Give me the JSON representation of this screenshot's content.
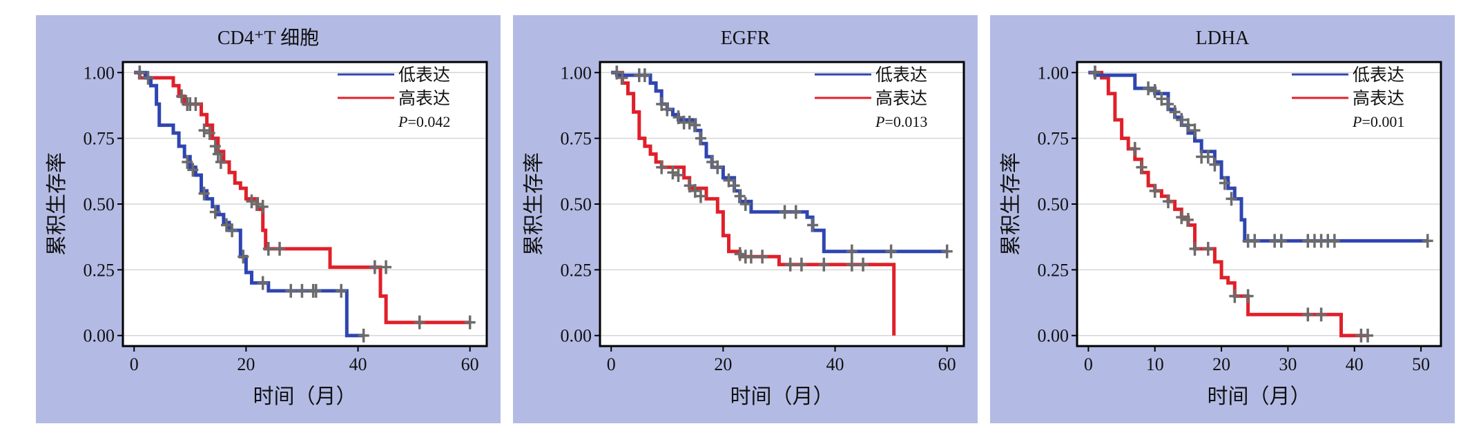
{
  "figure": {
    "y_axis_label": "累积生存率",
    "x_axis_label": "时间（月）"
  },
  "legend": {
    "low_label": "低表达",
    "high_label": "高表达",
    "low_color": "#2f45b0",
    "high_color": "#e0202a"
  },
  "chart_data": [
    {
      "type": "line",
      "title": "CD4⁺T 细胞",
      "xlabel": "时间（月）",
      "ylabel": "累积生存率",
      "xlim": [
        -2,
        63
      ],
      "ylim": [
        -0.04,
        1.04
      ],
      "xticks": [
        "0",
        "20",
        "40",
        "60"
      ],
      "yticks": [
        "0.00",
        "0.25",
        "0.50",
        "0.75",
        "1.00"
      ],
      "p_label": "P",
      "p_value": "=0.042",
      "legend_position": "top-right",
      "series": [
        {
          "name": "低表达",
          "steps": [
            [
              0,
              1.0
            ],
            [
              2,
              0.98
            ],
            [
              3,
              0.95
            ],
            [
              4,
              0.88
            ],
            [
              4.5,
              0.8
            ],
            [
              7,
              0.77
            ],
            [
              8,
              0.72
            ],
            [
              9,
              0.68
            ],
            [
              10,
              0.64
            ],
            [
              11,
              0.61
            ],
            [
              12,
              0.55
            ],
            [
              13,
              0.52
            ],
            [
              14,
              0.49
            ],
            [
              15,
              0.46
            ],
            [
              16,
              0.43
            ],
            [
              17,
              0.4
            ],
            [
              19,
              0.3
            ],
            [
              20,
              0.24
            ],
            [
              21,
              0.2
            ],
            [
              24,
              0.17
            ],
            [
              32,
              0.17
            ],
            [
              38,
              0.0
            ],
            [
              41,
              0.0
            ]
          ],
          "censors": [
            [
              1,
              1.0
            ],
            [
              2.5,
              0.98
            ],
            [
              9.5,
              0.66
            ],
            [
              10.5,
              0.63
            ],
            [
              12.5,
              0.54
            ],
            [
              14.5,
              0.47
            ],
            [
              16.5,
              0.42
            ],
            [
              17.5,
              0.4
            ],
            [
              19.5,
              0.3
            ],
            [
              23,
              0.2
            ],
            [
              28,
              0.17
            ],
            [
              30,
              0.17
            ],
            [
              32,
              0.17
            ],
            [
              32.5,
              0.17
            ],
            [
              37,
              0.17
            ],
            [
              41,
              0.0
            ]
          ]
        },
        {
          "name": "高表达",
          "steps": [
            [
              0,
              1.0
            ],
            [
              1,
              0.98
            ],
            [
              7,
              0.95
            ],
            [
              8,
              0.91
            ],
            [
              9,
              0.88
            ],
            [
              12,
              0.84
            ],
            [
              13,
              0.8
            ],
            [
              14,
              0.75
            ],
            [
              15,
              0.7
            ],
            [
              16,
              0.66
            ],
            [
              17,
              0.62
            ],
            [
              18,
              0.58
            ],
            [
              19,
              0.56
            ],
            [
              20,
              0.52
            ],
            [
              22,
              0.48
            ],
            [
              23,
              0.4
            ],
            [
              23.5,
              0.33
            ],
            [
              35,
              0.26
            ],
            [
              44,
              0.15
            ],
            [
              45,
              0.05
            ],
            [
              50,
              0.05
            ],
            [
              60,
              0.05
            ]
          ],
          "censors": [
            [
              1,
              1.0
            ],
            [
              8.5,
              0.91
            ],
            [
              9.5,
              0.88
            ],
            [
              10,
              0.88
            ],
            [
              11,
              0.88
            ],
            [
              12.5,
              0.78
            ],
            [
              13.5,
              0.77
            ],
            [
              14.5,
              0.72
            ],
            [
              15,
              0.69
            ],
            [
              15.5,
              0.66
            ],
            [
              21,
              0.51
            ],
            [
              22,
              0.5
            ],
            [
              23,
              0.49
            ],
            [
              24,
              0.33
            ],
            [
              26,
              0.33
            ],
            [
              43,
              0.26
            ],
            [
              45,
              0.26
            ],
            [
              51,
              0.05
            ],
            [
              60,
              0.05
            ]
          ]
        }
      ]
    },
    {
      "type": "line",
      "title": "EGFR",
      "xlabel": "时间（月）",
      "ylabel": "累积生存率",
      "xlim": [
        -2,
        63
      ],
      "ylim": [
        -0.04,
        1.04
      ],
      "xticks": [
        "0",
        "20",
        "40",
        "60"
      ],
      "yticks": [
        "0.00",
        "0.25",
        "0.50",
        "0.75",
        "1.00"
      ],
      "p_label": "P",
      "p_value": "=0.013",
      "legend_position": "top-right",
      "series": [
        {
          "name": "低表达",
          "steps": [
            [
              0,
              1.0
            ],
            [
              1,
              0.99
            ],
            [
              7,
              0.96
            ],
            [
              8,
              0.93
            ],
            [
              9,
              0.88
            ],
            [
              10,
              0.86
            ],
            [
              11,
              0.84
            ],
            [
              12,
              0.82
            ],
            [
              15,
              0.78
            ],
            [
              16,
              0.73
            ],
            [
              17,
              0.68
            ],
            [
              18,
              0.64
            ],
            [
              20,
              0.6
            ],
            [
              22,
              0.55
            ],
            [
              23,
              0.51
            ],
            [
              25,
              0.47
            ],
            [
              35,
              0.45
            ],
            [
              36,
              0.4
            ],
            [
              38,
              0.32
            ],
            [
              60,
              0.32
            ]
          ],
          "censors": [
            [
              1,
              1.0
            ],
            [
              5,
              0.99
            ],
            [
              6,
              0.99
            ],
            [
              9,
              0.88
            ],
            [
              10,
              0.86
            ],
            [
              12,
              0.83
            ],
            [
              13,
              0.81
            ],
            [
              14,
              0.81
            ],
            [
              15,
              0.8
            ],
            [
              16,
              0.75
            ],
            [
              18,
              0.66
            ],
            [
              19,
              0.64
            ],
            [
              21,
              0.59
            ],
            [
              22,
              0.57
            ],
            [
              23,
              0.53
            ],
            [
              24,
              0.5
            ],
            [
              31,
              0.47
            ],
            [
              33,
              0.47
            ],
            [
              36,
              0.42
            ],
            [
              43,
              0.32
            ],
            [
              50,
              0.32
            ],
            [
              60,
              0.32
            ]
          ]
        },
        {
          "name": "高表达",
          "steps": [
            [
              0,
              1.0
            ],
            [
              2,
              0.96
            ],
            [
              3,
              0.92
            ],
            [
              4,
              0.85
            ],
            [
              5,
              0.75
            ],
            [
              6,
              0.72
            ],
            [
              7,
              0.69
            ],
            [
              8,
              0.66
            ],
            [
              9,
              0.64
            ],
            [
              13,
              0.6
            ],
            [
              14,
              0.56
            ],
            [
              17,
              0.52
            ],
            [
              19,
              0.47
            ],
            [
              20,
              0.38
            ],
            [
              21,
              0.32
            ],
            [
              23,
              0.3
            ],
            [
              26,
              0.3
            ],
            [
              30,
              0.27
            ],
            [
              50.5,
              0.27
            ],
            [
              50.5,
              0.0
            ]
          ],
          "censors": [
            [
              1,
              1.0
            ],
            [
              2,
              0.98
            ],
            [
              9,
              0.64
            ],
            [
              11,
              0.62
            ],
            [
              12,
              0.61
            ],
            [
              14,
              0.57
            ],
            [
              15,
              0.55
            ],
            [
              16,
              0.53
            ],
            [
              23,
              0.31
            ],
            [
              24,
              0.3
            ],
            [
              25,
              0.3
            ],
            [
              27,
              0.3
            ],
            [
              32,
              0.27
            ],
            [
              34,
              0.27
            ],
            [
              38,
              0.27
            ],
            [
              43,
              0.27
            ],
            [
              45,
              0.27
            ]
          ]
        }
      ]
    },
    {
      "type": "line",
      "title": "LDHA",
      "xlabel": "时间（月）",
      "ylabel": "累积生存率",
      "xlim": [
        -1.7,
        53
      ],
      "ylim": [
        -0.04,
        1.04
      ],
      "xticks": [
        "0",
        "10",
        "20",
        "30",
        "40",
        "50"
      ],
      "yticks": [
        "0.00",
        "0.25",
        "0.50",
        "0.75",
        "1.00"
      ],
      "p_label": "P",
      "p_value": "=0.001",
      "legend_position": "top-right",
      "series": [
        {
          "name": "低表达",
          "steps": [
            [
              0,
              1.0
            ],
            [
              1,
              0.99
            ],
            [
              7,
              0.94
            ],
            [
              10,
              0.92
            ],
            [
              12,
              0.86
            ],
            [
              13,
              0.83
            ],
            [
              14,
              0.8
            ],
            [
              15,
              0.77
            ],
            [
              16,
              0.74
            ],
            [
              17,
              0.7
            ],
            [
              19,
              0.66
            ],
            [
              20,
              0.6
            ],
            [
              21,
              0.56
            ],
            [
              22,
              0.52
            ],
            [
              23,
              0.44
            ],
            [
              23.5,
              0.36
            ],
            [
              51,
              0.36
            ]
          ],
          "censors": [
            [
              1,
              1.0
            ],
            [
              9,
              0.94
            ],
            [
              10,
              0.93
            ],
            [
              11,
              0.9
            ],
            [
              12,
              0.88
            ],
            [
              13,
              0.85
            ],
            [
              14,
              0.82
            ],
            [
              15,
              0.8
            ],
            [
              16,
              0.78
            ],
            [
              17,
              0.68
            ],
            [
              18,
              0.68
            ],
            [
              19,
              0.65
            ],
            [
              20.5,
              0.58
            ],
            [
              21.5,
              0.52
            ],
            [
              24,
              0.36
            ],
            [
              25,
              0.36
            ],
            [
              28,
              0.36
            ],
            [
              29,
              0.36
            ],
            [
              33,
              0.36
            ],
            [
              34,
              0.36
            ],
            [
              35,
              0.36
            ],
            [
              36,
              0.36
            ],
            [
              37,
              0.36
            ],
            [
              51,
              0.36
            ]
          ]
        },
        {
          "name": "高表达",
          "steps": [
            [
              0,
              1.0
            ],
            [
              2,
              0.98
            ],
            [
              3,
              0.92
            ],
            [
              4,
              0.82
            ],
            [
              5,
              0.75
            ],
            [
              6,
              0.71
            ],
            [
              7,
              0.67
            ],
            [
              8,
              0.62
            ],
            [
              9,
              0.57
            ],
            [
              10,
              0.55
            ],
            [
              11,
              0.53
            ],
            [
              12,
              0.51
            ],
            [
              13,
              0.48
            ],
            [
              14,
              0.45
            ],
            [
              15,
              0.42
            ],
            [
              16,
              0.33
            ],
            [
              19,
              0.28
            ],
            [
              20,
              0.22
            ],
            [
              21,
              0.2
            ],
            [
              22,
              0.15
            ],
            [
              24,
              0.08
            ],
            [
              37,
              0.08
            ],
            [
              38,
              0.0
            ],
            [
              42,
              0.0
            ]
          ],
          "censors": [
            [
              1,
              1.0
            ],
            [
              7,
              0.71
            ],
            [
              8,
              0.64
            ],
            [
              10,
              0.55
            ],
            [
              12,
              0.51
            ],
            [
              14,
              0.45
            ],
            [
              15,
              0.44
            ],
            [
              16,
              0.33
            ],
            [
              18,
              0.33
            ],
            [
              22,
              0.15
            ],
            [
              24,
              0.15
            ],
            [
              33,
              0.08
            ],
            [
              35,
              0.08
            ],
            [
              41,
              0.0
            ],
            [
              42,
              0.0
            ]
          ]
        }
      ]
    }
  ]
}
